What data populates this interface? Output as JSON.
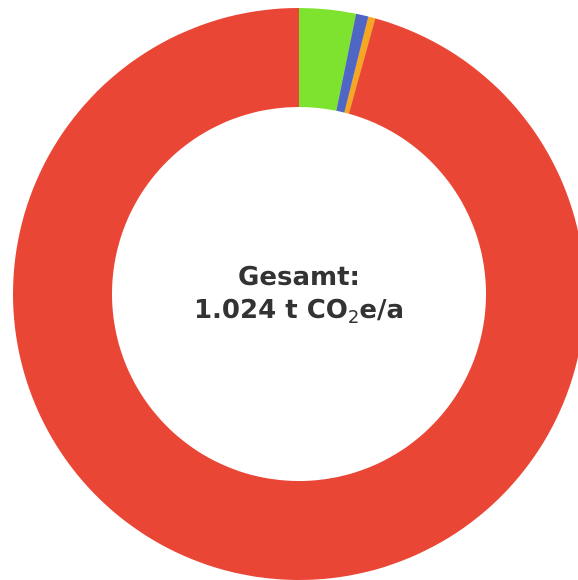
{
  "chart_data": {
    "type": "donut",
    "values": [
      3.2,
      0.7,
      0.4,
      95.7
    ],
    "colors": [
      "#7ee32f",
      "#4f66c4",
      "#f5a623",
      "#ea4636"
    ],
    "center_label": {
      "line1": "Gesamt:",
      "line2_before": "1.024 t CO",
      "line2_sub": "2",
      "line2_after": "e/a"
    }
  }
}
